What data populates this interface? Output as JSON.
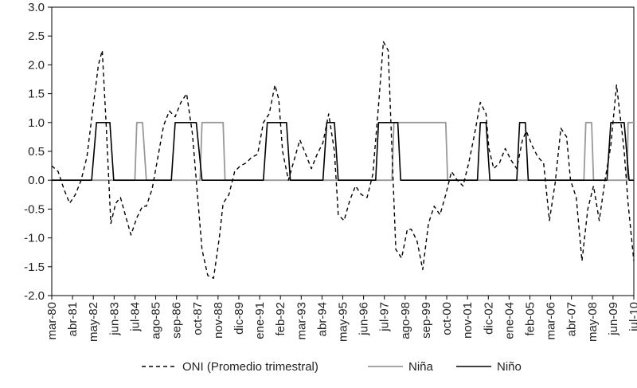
{
  "chart_data": {
    "type": "line",
    "title": "",
    "xlabel": "",
    "ylabel": "",
    "ylim": [
      -2.0,
      3.0
    ],
    "y_ticks": [
      "3.0",
      "2.5",
      "2.0",
      "1.5",
      "1.0",
      "0.5",
      "0.0",
      "-0.5",
      "-1.0",
      "-1.5",
      "-2.0"
    ],
    "x_range": [
      1980.17,
      2010.5
    ],
    "x_ticks": [
      "mar-80",
      "abr-81",
      "may-82",
      "jun-83",
      "jul-84",
      "ago-85",
      "sep-86",
      "oct-87",
      "nov-88",
      "dic-89",
      "ene-91",
      "feb-92",
      "mar-93",
      "abr-94",
      "may-95",
      "jun-96",
      "jul-97",
      "ago-98",
      "sep-99",
      "oct-00",
      "nov-01",
      "dic-02",
      "ene-04",
      "feb-05",
      "mar-06",
      "abr-07",
      "may-08",
      "jun-09",
      "jul-10"
    ],
    "grid": false,
    "legend_position": "bottom",
    "series": [
      {
        "name": "ONI (Promedio trimestral)",
        "style": "dashed",
        "color": "#000000",
        "x": [
          1980.17,
          1980.5,
          1980.8,
          1981.1,
          1981.4,
          1981.7,
          1982.0,
          1982.3,
          1982.6,
          1982.8,
          1983.0,
          1983.25,
          1983.5,
          1983.75,
          1984.0,
          1984.3,
          1984.6,
          1984.9,
          1985.1,
          1985.4,
          1985.7,
          1986.0,
          1986.3,
          1986.6,
          1986.9,
          1987.2,
          1987.5,
          1987.8,
          1988.0,
          1988.3,
          1988.6,
          1988.9,
          1989.1,
          1989.4,
          1989.7,
          1990.0,
          1990.3,
          1990.6,
          1990.9,
          1991.2,
          1991.5,
          1991.8,
          1992.0,
          1992.2,
          1992.5,
          1992.8,
          1993.1,
          1993.4,
          1993.7,
          1994.0,
          1994.3,
          1994.6,
          1994.9,
          1995.1,
          1995.4,
          1995.7,
          1996.0,
          1996.3,
          1996.6,
          1996.9,
          1997.2,
          1997.45,
          1997.7,
          1997.9,
          1998.1,
          1998.4,
          1998.7,
          1998.9,
          1999.2,
          1999.5,
          1999.8,
          2000.1,
          2000.4,
          2000.7,
          2001.0,
          2001.3,
          2001.6,
          2001.9,
          2002.2,
          2002.5,
          2002.8,
          2002.95,
          2003.2,
          2003.5,
          2003.8,
          2004.1,
          2004.4,
          2004.7,
          2004.9,
          2005.2,
          2005.5,
          2005.8,
          2006.1,
          2006.4,
          2006.7,
          2007.0,
          2007.2,
          2007.5,
          2007.8,
          2008.1,
          2008.4,
          2008.7,
          2009.0,
          2009.3,
          2009.6,
          2009.9,
          2010.0,
          2010.2,
          2010.5
        ],
        "values": [
          0.25,
          0.15,
          -0.15,
          -0.4,
          -0.25,
          0.0,
          0.4,
          1.2,
          2.0,
          2.25,
          1.0,
          -0.75,
          -0.4,
          -0.3,
          -0.6,
          -0.95,
          -0.65,
          -0.45,
          -0.45,
          -0.15,
          0.4,
          0.95,
          1.2,
          1.1,
          1.35,
          1.5,
          0.8,
          -0.4,
          -1.2,
          -1.65,
          -1.7,
          -1.0,
          -0.4,
          -0.25,
          0.15,
          0.25,
          0.3,
          0.4,
          0.45,
          1.0,
          1.15,
          1.65,
          1.4,
          0.5,
          0.0,
          0.35,
          0.7,
          0.45,
          0.2,
          0.45,
          0.65,
          1.15,
          0.5,
          -0.6,
          -0.7,
          -0.35,
          -0.1,
          -0.25,
          -0.3,
          0.1,
          1.3,
          2.4,
          2.25,
          0.5,
          -1.2,
          -1.35,
          -0.85,
          -0.85,
          -1.05,
          -1.55,
          -0.75,
          -0.45,
          -0.6,
          -0.25,
          0.15,
          0.0,
          -0.1,
          0.3,
          0.8,
          1.35,
          1.15,
          0.55,
          0.2,
          0.3,
          0.55,
          0.35,
          0.2,
          0.7,
          0.85,
          0.6,
          0.4,
          0.3,
          -0.7,
          -0.05,
          0.9,
          0.75,
          0.0,
          -0.3,
          -1.4,
          -0.5,
          -0.1,
          -0.7,
          0.0,
          0.6,
          1.65,
          0.8,
          0.5,
          -0.4,
          -1.4
        ]
      },
      {
        "name": "Niña",
        "style": "solid",
        "color": "#999999",
        "x": [
          1980.17,
          1984.5,
          1984.6,
          1984.9,
          1985.1,
          1987.9,
          1988.0,
          1989.1,
          1989.2,
          1997.9,
          1998.0,
          2000.7,
          2000.8,
          2007.9,
          2008.0,
          2008.3,
          2008.4,
          2010.15,
          2010.2,
          2010.5
        ],
        "values": [
          0,
          0,
          1,
          1,
          0,
          0,
          1,
          1,
          0,
          0,
          1,
          1,
          0,
          0,
          1,
          1,
          0,
          0,
          1,
          1
        ]
      },
      {
        "name": "Niño",
        "style": "solid",
        "color": "#000000",
        "x": [
          1980.17,
          1982.25,
          1982.5,
          1983.2,
          1983.4,
          1986.4,
          1986.6,
          1987.7,
          1988.0,
          1991.2,
          1991.4,
          1992.4,
          1992.6,
          1994.3,
          1994.5,
          1994.9,
          1995.1,
          1997.05,
          1997.2,
          1998.2,
          1998.35,
          2002.35,
          2002.5,
          2002.8,
          2003.0,
          2004.4,
          2004.55,
          2004.85,
          2005.0,
          2009.1,
          2009.3,
          2010.0,
          2010.25,
          2010.5
        ],
        "values": [
          0,
          0,
          1,
          1,
          0,
          0,
          1,
          1,
          0,
          0,
          1,
          1,
          0,
          0,
          1,
          1,
          0,
          0,
          1,
          1,
          0,
          0,
          1,
          1,
          0,
          0,
          1,
          1,
          0,
          0,
          1,
          1,
          0,
          0
        ]
      }
    ]
  }
}
